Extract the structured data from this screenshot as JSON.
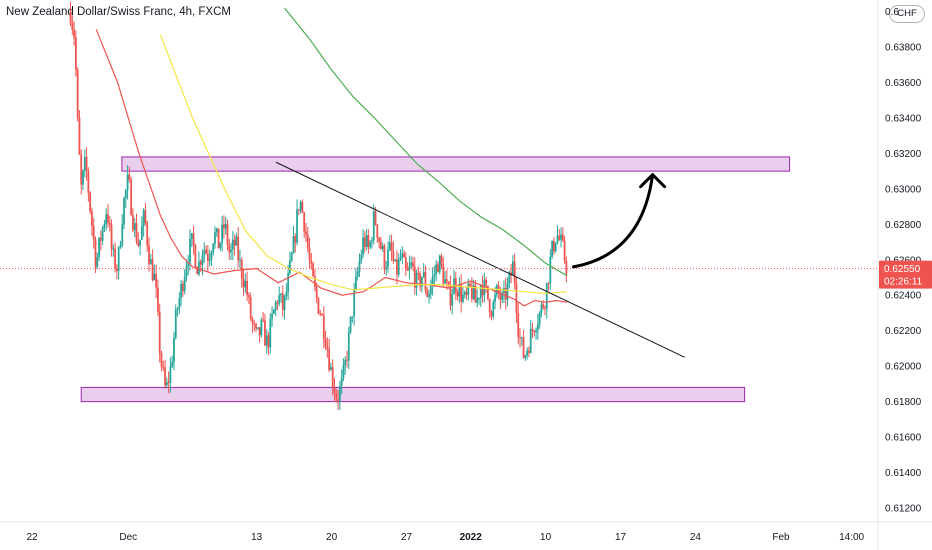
{
  "header": {
    "symbol_title": "New Zealand Dollar/Swiss Franc, 4h, FXCM",
    "currency_badge": "CHF"
  },
  "chart_data": {
    "type": "candlestick",
    "symbol": "NZDCHF",
    "interval": "4h",
    "source": "FXCM",
    "ylim": [
      0.6107,
      0.6404
    ],
    "y_ticks": [
      0.612,
      0.614,
      0.616,
      0.618,
      0.62,
      0.622,
      0.624,
      0.626,
      0.628,
      0.63,
      0.632,
      0.634,
      0.636,
      0.638
    ],
    "y_tick_labels": [
      "0.61200",
      "0.61400",
      "0.61600",
      "0.61800",
      "0.62000",
      "0.62200",
      "0.62400",
      "0.62600",
      "0.62800",
      "0.63000",
      "0.63200",
      "0.63400",
      "0.63600",
      "0.63800"
    ],
    "x_range_days": [
      -1.0,
      51.0
    ],
    "x_ticks": [
      {
        "day": 0,
        "label": "22"
      },
      {
        "day": 9,
        "label": "Dec"
      },
      {
        "day": 21,
        "label": "13"
      },
      {
        "day": 28,
        "label": "20"
      },
      {
        "day": 35,
        "label": "27"
      },
      {
        "day": 41,
        "label": "2022"
      },
      {
        "day": 48,
        "label": "10"
      },
      {
        "day": 55,
        "label": "17"
      },
      {
        "day": 62,
        "label": "24"
      },
      {
        "day": 70,
        "label": "Feb"
      },
      {
        "day": 76.6,
        "label": "14:00"
      }
    ],
    "current_price": 0.6255,
    "current_price_label": "0.62550",
    "countdown": "02:26:11",
    "close_path": [
      [
        3.6,
        0.64
      ],
      [
        4.0,
        0.6385
      ],
      [
        4.3,
        0.633
      ],
      [
        4.6,
        0.63
      ],
      [
        5.0,
        0.6315
      ],
      [
        5.6,
        0.628
      ],
      [
        6.0,
        0.6258
      ],
      [
        6.5,
        0.6275
      ],
      [
        7.0,
        0.629
      ],
      [
        7.5,
        0.6262
      ],
      [
        8.0,
        0.6255
      ],
      [
        8.5,
        0.629
      ],
      [
        9.0,
        0.6305
      ],
      [
        9.5,
        0.628
      ],
      [
        10.0,
        0.6268
      ],
      [
        10.5,
        0.6285
      ],
      [
        11.0,
        0.626
      ],
      [
        11.5,
        0.6248
      ],
      [
        12.0,
        0.6205
      ],
      [
        12.5,
        0.6185
      ],
      [
        13.0,
        0.62
      ],
      [
        13.5,
        0.623
      ],
      [
        14.0,
        0.6245
      ],
      [
        14.5,
        0.6262
      ],
      [
        15.0,
        0.627
      ],
      [
        15.5,
        0.6255
      ],
      [
        16.0,
        0.6268
      ],
      [
        16.5,
        0.6262
      ],
      [
        17.0,
        0.6275
      ],
      [
        17.5,
        0.6268
      ],
      [
        18.0,
        0.628
      ],
      [
        18.5,
        0.6262
      ],
      [
        19.0,
        0.627
      ],
      [
        19.5,
        0.6255
      ],
      [
        20.0,
        0.6245
      ],
      [
        20.5,
        0.6225
      ],
      [
        21.0,
        0.6215
      ],
      [
        21.5,
        0.6222
      ],
      [
        22.0,
        0.6212
      ],
      [
        22.5,
        0.6228
      ],
      [
        23.0,
        0.624
      ],
      [
        23.5,
        0.6232
      ],
      [
        24.0,
        0.625
      ],
      [
        24.5,
        0.627
      ],
      [
        25.0,
        0.6295
      ],
      [
        25.5,
        0.628
      ],
      [
        26.0,
        0.6255
      ],
      [
        26.5,
        0.624
      ],
      [
        27.0,
        0.623
      ],
      [
        27.5,
        0.6215
      ],
      [
        28.0,
        0.6195
      ],
      [
        28.5,
        0.6182
      ],
      [
        29.0,
        0.619
      ],
      [
        29.5,
        0.621
      ],
      [
        30.0,
        0.6235
      ],
      [
        30.5,
        0.6255
      ],
      [
        31.0,
        0.6272
      ],
      [
        31.5,
        0.6265
      ],
      [
        32.0,
        0.6285
      ],
      [
        32.5,
        0.627
      ],
      [
        33.0,
        0.6258
      ],
      [
        33.5,
        0.6266
      ],
      [
        34.0,
        0.6252
      ],
      [
        34.5,
        0.6262
      ],
      [
        35.0,
        0.625
      ],
      [
        35.5,
        0.6257
      ],
      [
        36.0,
        0.6245
      ],
      [
        36.5,
        0.6252
      ],
      [
        37.0,
        0.624
      ],
      [
        37.5,
        0.625
      ],
      [
        38.0,
        0.626
      ],
      [
        38.5,
        0.625
      ],
      [
        39.0,
        0.6238
      ],
      [
        39.5,
        0.6248
      ],
      [
        40.0,
        0.6242
      ],
      [
        40.5,
        0.6236
      ],
      [
        41.0,
        0.6244
      ],
      [
        41.5,
        0.6235
      ],
      [
        42.0,
        0.6248
      ],
      [
        42.5,
        0.624
      ],
      [
        43.0,
        0.6232
      ],
      [
        43.5,
        0.6242
      ],
      [
        44.0,
        0.6236
      ],
      [
        44.5,
        0.6245
      ],
      [
        45.0,
        0.6258
      ],
      [
        45.5,
        0.6218
      ],
      [
        46.0,
        0.6205
      ],
      [
        46.5,
        0.6215
      ],
      [
        47.0,
        0.6225
      ],
      [
        47.5,
        0.623
      ],
      [
        48.0,
        0.624
      ],
      [
        48.5,
        0.6262
      ],
      [
        49.0,
        0.6275
      ],
      [
        49.5,
        0.6268
      ],
      [
        50.0,
        0.6255
      ]
    ],
    "series": [
      {
        "name": "",
        "color": "#ef5350",
        "points": [
          [
            6.0,
            0.639
          ],
          [
            8.0,
            0.636
          ],
          [
            10.0,
            0.632
          ],
          [
            12.0,
            0.6285
          ],
          [
            13.0,
            0.6272
          ],
          [
            14.0,
            0.6262
          ],
          [
            15.0,
            0.6256
          ],
          [
            17.0,
            0.6252
          ],
          [
            19.0,
            0.6254
          ],
          [
            21.0,
            0.6255
          ],
          [
            23.0,
            0.6247
          ],
          [
            25.0,
            0.6253
          ],
          [
            27.0,
            0.6244
          ],
          [
            29.0,
            0.624
          ],
          [
            31.0,
            0.6242
          ],
          [
            33.0,
            0.625
          ],
          [
            35.0,
            0.6247
          ],
          [
            37.0,
            0.6246
          ],
          [
            39.0,
            0.6244
          ],
          [
            41.0,
            0.6248
          ],
          [
            43.0,
            0.6243
          ],
          [
            45.0,
            0.6238
          ],
          [
            46.0,
            0.6234
          ],
          [
            47.0,
            0.6237
          ],
          [
            48.0,
            0.6236
          ],
          [
            49.0,
            0.6237
          ],
          [
            50.0,
            0.6236
          ]
        ]
      },
      {
        "name": "",
        "color": "#f3e542",
        "points": [
          [
            12.0,
            0.6387
          ],
          [
            15.0,
            0.634
          ],
          [
            18.0,
            0.63
          ],
          [
            20.0,
            0.6276
          ],
          [
            22.0,
            0.6262
          ],
          [
            24.0,
            0.6255
          ],
          [
            26.0,
            0.625
          ],
          [
            28.0,
            0.6246
          ],
          [
            30.0,
            0.6243
          ],
          [
            32.0,
            0.6244
          ],
          [
            34.0,
            0.6245
          ],
          [
            36.0,
            0.6246
          ],
          [
            38.0,
            0.6246
          ],
          [
            40.0,
            0.6245
          ],
          [
            42.0,
            0.6244
          ],
          [
            44.0,
            0.6243
          ],
          [
            46.0,
            0.6242
          ],
          [
            48.0,
            0.6241
          ],
          [
            50.0,
            0.6242
          ]
        ]
      },
      {
        "name": "",
        "color": "#4caf50",
        "points": [
          [
            23.6,
            0.6402
          ],
          [
            26.0,
            0.6384
          ],
          [
            28.0,
            0.6367
          ],
          [
            30.0,
            0.6352
          ],
          [
            32.0,
            0.634
          ],
          [
            34.0,
            0.6327
          ],
          [
            36.0,
            0.6314
          ],
          [
            38.0,
            0.6304
          ],
          [
            40.0,
            0.6293
          ],
          [
            42.0,
            0.6284
          ],
          [
            44.0,
            0.6277
          ],
          [
            46.0,
            0.6268
          ],
          [
            48.0,
            0.6258
          ],
          [
            50.0,
            0.6251
          ]
        ]
      }
    ],
    "zones": [
      {
        "x_start": 8.4,
        "x_end": 70.8,
        "y_low": 0.631,
        "y_high": 0.6318,
        "color": "#e1bee7",
        "border": "#9c27b0"
      },
      {
        "x_start": 4.6,
        "x_end": 66.6,
        "y_low": 0.618,
        "y_high": 0.6188,
        "color": "#e1bee7",
        "border": "#9c27b0"
      }
    ],
    "trendline": {
      "from": [
        22.8,
        0.6315
      ],
      "to": [
        61.0,
        0.6205
      ],
      "color": "#131722"
    },
    "arrow": {
      "from": [
        50.6,
        0.6256
      ],
      "control": [
        57.0,
        0.6263
      ],
      "to": [
        58.0,
        0.6308
      ],
      "color": "#000000"
    }
  }
}
